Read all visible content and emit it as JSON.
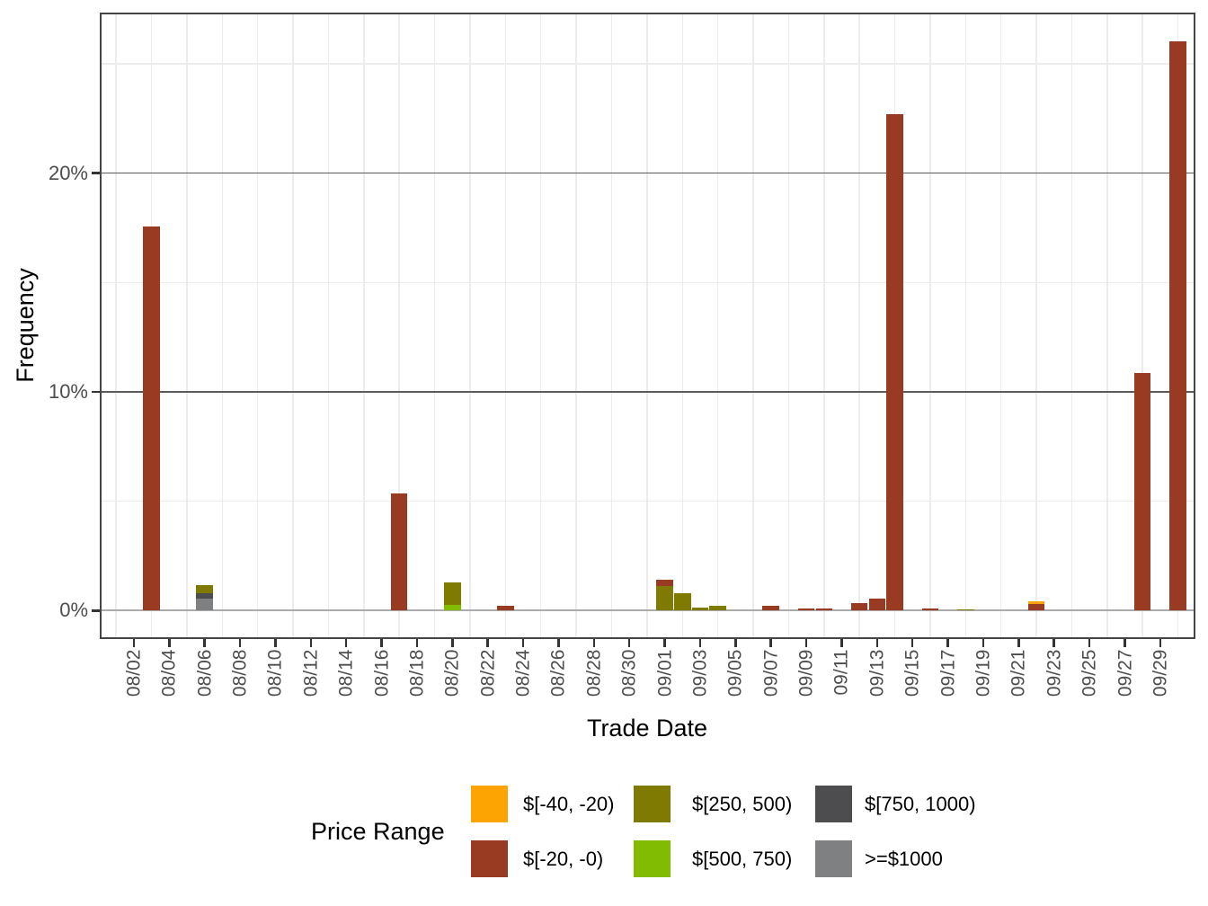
{
  "chart_data": {
    "type": "bar",
    "stacked": true,
    "title": "",
    "xlabel": "Trade Date",
    "ylabel": "Frequency",
    "grid": "on",
    "y_axis": {
      "unit": "percent",
      "ticks": [
        {
          "label": "0%",
          "value": 0
        },
        {
          "label": "10%",
          "value": 10
        },
        {
          "label": "20%",
          "value": 20
        }
      ],
      "minor_values": [
        5,
        15,
        25
      ],
      "visible_range_pct": [
        -1.3,
        27.3
      ]
    },
    "x_axis": {
      "first_gridline_date": "08/01",
      "last_gridline_date": "09/30",
      "tick_labels": [
        "08/02",
        "08/04",
        "08/06",
        "08/08",
        "08/10",
        "08/12",
        "08/14",
        "08/16",
        "08/18",
        "08/20",
        "08/22",
        "08/24",
        "08/26",
        "08/28",
        "08/30",
        "09/01",
        "09/03",
        "09/05",
        "09/07",
        "09/09",
        "09/11",
        "09/13",
        "09/15",
        "09/17",
        "09/19",
        "09/21",
        "09/23",
        "09/25",
        "09/27",
        "09/29"
      ],
      "tick_day_offsets": [
        1,
        3,
        5,
        7,
        9,
        11,
        13,
        15,
        17,
        19,
        21,
        23,
        25,
        27,
        29,
        31,
        33,
        35,
        37,
        39,
        41,
        43,
        45,
        47,
        49,
        51,
        53,
        55,
        57,
        59
      ],
      "minor_gridline_day_offsets": [
        0,
        2,
        4,
        6,
        8,
        10,
        12,
        14,
        16,
        18,
        20,
        22,
        24,
        26,
        28,
        30,
        32,
        34,
        36,
        38,
        40,
        42,
        44,
        46,
        48,
        50,
        52,
        54,
        56,
        58,
        60
      ]
    },
    "legend": {
      "title": "Price Range",
      "position": "bottom",
      "entries": [
        {
          "label": "$[-40, -20)",
          "color": "#FDA402"
        },
        {
          "label": "$[-20, -0)",
          "color": "#993A22"
        },
        {
          "label": "$[250, 500)",
          "color": "#7E7A02"
        },
        {
          "label": "$[500, 750)",
          "color": "#81BB02"
        },
        {
          "label": "$[750, 1000)",
          "color": "#4D4D4F"
        },
        {
          "label": ">=$1000",
          "color": "#7F8082"
        }
      ]
    },
    "bars": [
      {
        "date": "08/03",
        "day": 2,
        "segments": [
          {
            "range": "$[-20, -0)",
            "pct": 17.56
          }
        ]
      },
      {
        "date": "08/06",
        "day": 5,
        "segments": [
          {
            "range": ">=$1000",
            "pct": 0.56
          },
          {
            "range": "$[750, 1000)",
            "pct": 0.25
          },
          {
            "range": "$[250, 500)",
            "pct": 0.37
          }
        ]
      },
      {
        "date": "08/17",
        "day": 16,
        "segments": [
          {
            "range": "$[-20, -0)",
            "pct": 5.35
          }
        ]
      },
      {
        "date": "08/20",
        "day": 19,
        "segments": [
          {
            "range": "$[500, 750)",
            "pct": 0.27
          },
          {
            "range": "$[250, 500)",
            "pct": 1.02
          }
        ]
      },
      {
        "date": "08/23",
        "day": 22,
        "segments": [
          {
            "range": "$[-20, -0)",
            "pct": 0.22
          }
        ]
      },
      {
        "date": "09/01",
        "day": 31,
        "segments": [
          {
            "range": "$[250, 500)",
            "pct": 1.14
          },
          {
            "range": "$[-20, -0)",
            "pct": 0.25
          }
        ]
      },
      {
        "date": "09/02",
        "day": 32,
        "segments": [
          {
            "range": "$[250, 500)",
            "pct": 0.78
          }
        ]
      },
      {
        "date": "09/03",
        "day": 33,
        "segments": [
          {
            "range": "$[250, 500)",
            "pct": 0.12
          }
        ]
      },
      {
        "date": "09/04",
        "day": 34,
        "segments": [
          {
            "range": "$[250, 500)",
            "pct": 0.23
          }
        ]
      },
      {
        "date": "09/07",
        "day": 37,
        "segments": [
          {
            "range": "$[-20, -0)",
            "pct": 0.23
          }
        ]
      },
      {
        "date": "09/09",
        "day": 39,
        "segments": [
          {
            "range": "$[-20, -0)",
            "pct": 0.08
          }
        ]
      },
      {
        "date": "09/10",
        "day": 40,
        "segments": [
          {
            "range": "$[-20, -0)",
            "pct": 0.08
          }
        ]
      },
      {
        "date": "09/12",
        "day": 42,
        "segments": [
          {
            "range": "$[-20, -0)",
            "pct": 0.36
          }
        ]
      },
      {
        "date": "09/13",
        "day": 43,
        "segments": [
          {
            "range": "$[-20, -0)",
            "pct": 0.53
          }
        ]
      },
      {
        "date": "09/14",
        "day": 44,
        "segments": [
          {
            "range": "$[-20, -0)",
            "pct": 22.71
          }
        ]
      },
      {
        "date": "09/16",
        "day": 46,
        "segments": [
          {
            "range": "$[-20, -0)",
            "pct": 0.11
          }
        ]
      },
      {
        "date": "09/18",
        "day": 48,
        "segments": [
          {
            "range": "$[250, 500)",
            "pct": 0.06
          }
        ]
      },
      {
        "date": "09/22",
        "day": 52,
        "segments": [
          {
            "range": "$[-20, -0)",
            "pct": 0.3
          },
          {
            "range": "$[-40, -20)",
            "pct": 0.12
          }
        ]
      },
      {
        "date": "09/28",
        "day": 58,
        "segments": [
          {
            "range": "$[-20, -0)",
            "pct": 10.86
          }
        ]
      },
      {
        "date": "09/30",
        "day": 60,
        "segments": [
          {
            "range": "$[-20, -0)",
            "pct": 26.03
          }
        ]
      }
    ]
  }
}
